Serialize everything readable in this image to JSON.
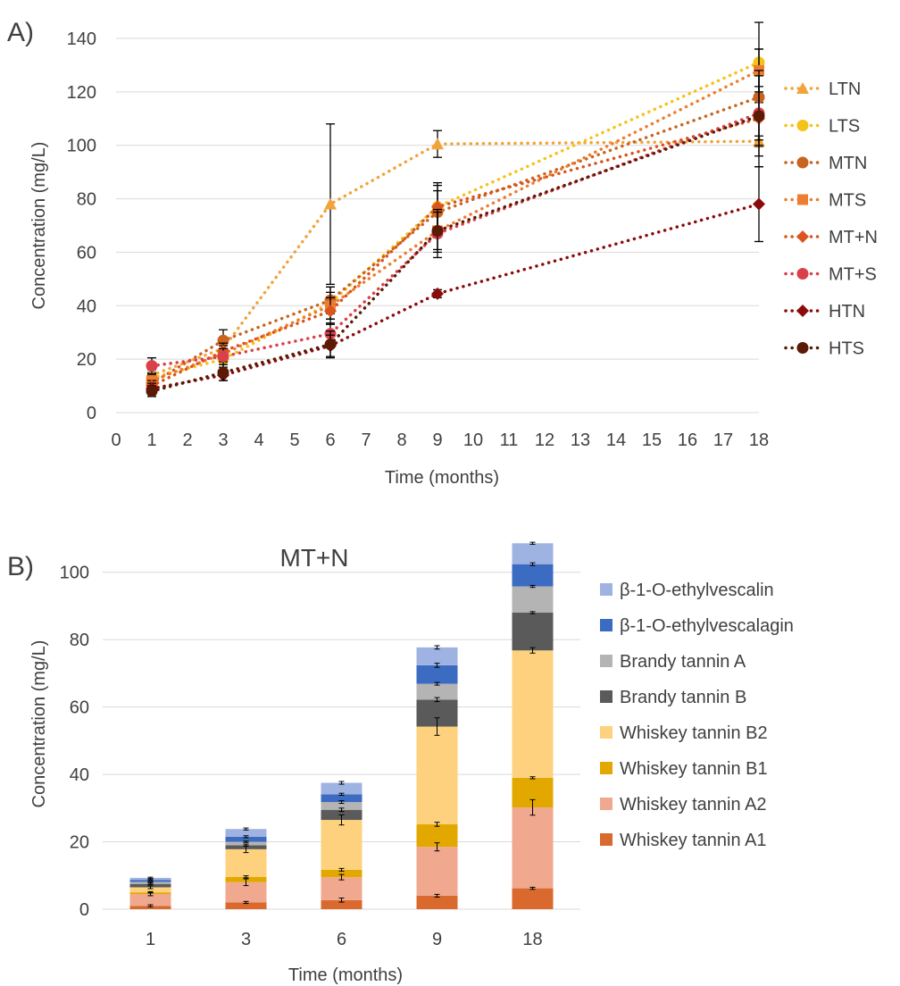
{
  "figure": {
    "panel_a_label": "A)",
    "panel_b_label": "B)"
  },
  "chart_data": [
    {
      "type": "line",
      "panel": "A)",
      "xlabel": "Time (months)",
      "ylabel": "Concentration (mg/L)",
      "xlim": [
        0,
        18
      ],
      "ylim": [
        0,
        140
      ],
      "x_ticks": [
        "0",
        "1",
        "2",
        "3",
        "4",
        "5",
        "6",
        "7",
        "8",
        "9",
        "10",
        "11",
        "12",
        "13",
        "14",
        "15",
        "16",
        "17",
        "18"
      ],
      "y_ticks": [
        "0",
        "20",
        "40",
        "60",
        "80",
        "100",
        "120",
        "140"
      ],
      "x": [
        1,
        3,
        6,
        9,
        18
      ],
      "grid": "horizontal",
      "legend_position": "right",
      "line_style": "dotted",
      "series": [
        {
          "name": "LTN",
          "color": "#F2A33A",
          "marker": "triangle",
          "values": [
            14,
            24,
            78,
            100.5,
            101.5
          ],
          "errors": [
            2,
            3,
            30,
            5,
            2
          ]
        },
        {
          "name": "LTS",
          "color": "#F5C218",
          "marker": "circle",
          "values": [
            13,
            20,
            41,
            77,
            131
          ],
          "errors": [
            2,
            3,
            6,
            8,
            15
          ]
        },
        {
          "name": "MTN",
          "color": "#C8641E",
          "marker": "circle",
          "values": [
            11,
            27,
            42,
            75,
            118
          ],
          "errors": [
            2,
            4,
            5,
            8,
            18
          ]
        },
        {
          "name": "MTS",
          "color": "#ED7D31",
          "marker": "square",
          "values": [
            12,
            22,
            40,
            68,
            128
          ],
          "errors": [
            2,
            3,
            5,
            8,
            8
          ]
        },
        {
          "name": "MT+N",
          "color": "#D9541E",
          "marker": "diamond",
          "values": [
            10,
            23,
            38,
            77,
            110
          ],
          "errors": [
            2,
            3,
            5,
            9,
            18
          ]
        },
        {
          "name": "MT+S",
          "color": "#D9414A",
          "marker": "circle",
          "values": [
            17.5,
            21,
            29.5,
            67,
            112
          ],
          "errors": [
            3,
            3,
            4,
            9,
            10
          ]
        },
        {
          "name": "HTN",
          "color": "#8B0A0A",
          "marker": "diamond",
          "values": [
            9,
            14,
            25,
            44.5,
            78
          ],
          "errors": [
            2,
            2,
            4,
            1.5,
            14
          ]
        },
        {
          "name": "HTS",
          "color": "#5A1A06",
          "marker": "circle",
          "values": [
            8,
            15,
            25.5,
            68,
            111
          ],
          "errors": [
            2,
            3,
            5,
            7,
            15
          ]
        }
      ]
    },
    {
      "type": "bar",
      "stacked": true,
      "panel": "B)",
      "title": "MT+N",
      "xlabel": "Time (months)",
      "ylabel": "Concentration (mg/L)",
      "categories": [
        "1",
        "3",
        "6",
        "9",
        "18"
      ],
      "ylim": [
        0,
        110
      ],
      "y_ticks": [
        "0",
        "20",
        "40",
        "60",
        "80",
        "100"
      ],
      "grid": "horizontal",
      "legend_position": "right",
      "series": [
        {
          "name": "Whiskey tannin A1",
          "color": "#D9692C",
          "values": [
            1.0,
            2.0,
            2.7,
            4.0,
            6.2
          ],
          "errors": [
            0.3,
            0.3,
            0.6,
            0.4,
            0.3
          ]
        },
        {
          "name": "Whiskey tannin A2",
          "color": "#F0A88E",
          "values": [
            3.5,
            6.0,
            6.8,
            14.5,
            24.0
          ],
          "errors": [
            0.5,
            1.0,
            0.8,
            1.2,
            2.3
          ]
        },
        {
          "name": "Whiskey tannin B1",
          "color": "#E3A800",
          "values": [
            0.5,
            1.6,
            2.2,
            6.7,
            8.8
          ],
          "errors": [
            0.2,
            0.3,
            0.4,
            0.6,
            0.3
          ]
        },
        {
          "name": "Whiskey tannin B2",
          "color": "#FDD17D",
          "values": [
            1.5,
            8.2,
            14.8,
            29.0,
            37.8
          ],
          "errors": [
            0.4,
            1.0,
            1.5,
            2.6,
            0.8
          ]
        },
        {
          "name": "Brandy tannin B",
          "color": "#5A5A5A",
          "values": [
            1.0,
            1.2,
            3.0,
            8.0,
            11.2
          ],
          "errors": [
            0.2,
            0.3,
            0.5,
            0.6,
            0.3
          ]
        },
        {
          "name": "Brandy tannin A",
          "color": "#B4B4B4",
          "values": [
            0.6,
            1.0,
            2.3,
            4.7,
            7.8
          ],
          "errors": [
            0.1,
            0.2,
            0.4,
            0.4,
            0.3
          ]
        },
        {
          "name": "β-1-O-ethylvescalagin",
          "color": "#3C6BC2",
          "values": [
            0.6,
            1.5,
            2.3,
            5.5,
            6.6
          ],
          "errors": [
            0.1,
            0.3,
            0.3,
            0.6,
            0.4
          ]
        },
        {
          "name": "β-1-O-ethylvescalin",
          "color": "#9FB3E2",
          "values": [
            0.6,
            2.3,
            3.4,
            5.3,
            6.2
          ],
          "errors": [
            0.2,
            0.3,
            0.4,
            0.5,
            0.3
          ]
        }
      ]
    }
  ]
}
